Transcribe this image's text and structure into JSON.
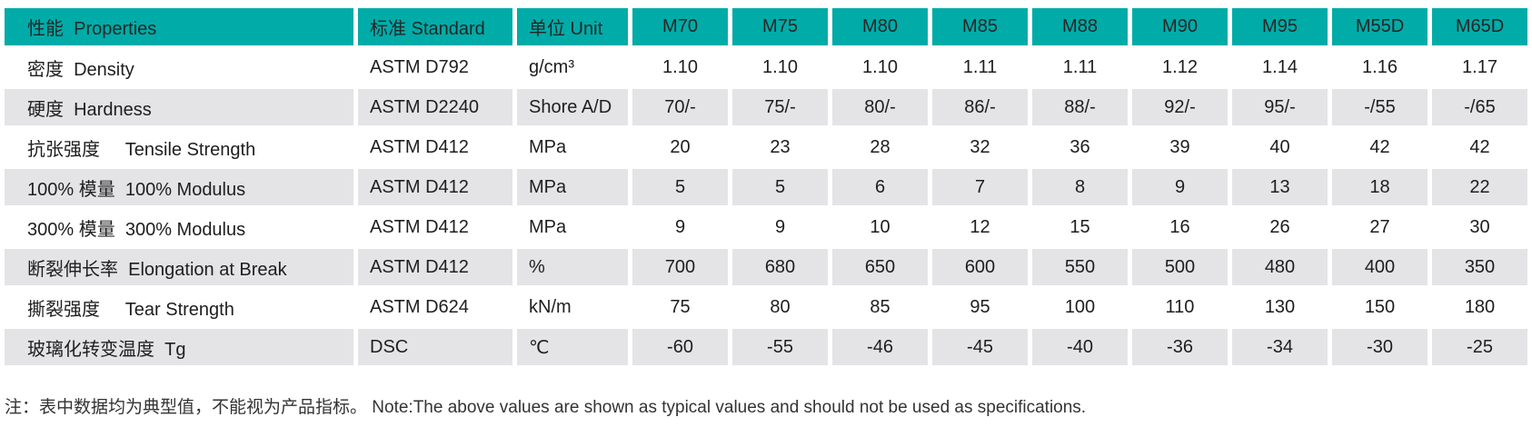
{
  "colors": {
    "header_bg": "#00aba8",
    "header_text": "#262626",
    "row_alt_bg": "#e4e4e6",
    "text": "#1e1e1e",
    "note_text": "#333333"
  },
  "table": {
    "header": {
      "property_label": "性能  Properties",
      "standard_label": "标准 Standard",
      "unit_label": "单位 Unit",
      "grades": [
        "M70",
        "M75",
        "M80",
        "M85",
        "M88",
        "M90",
        "M95",
        "M55D",
        "M65D"
      ]
    },
    "rows": [
      {
        "property": "密度  Density",
        "standard": "ASTM D792",
        "unit": "g/cm³",
        "values": [
          "1.10",
          "1.10",
          "1.10",
          "1.11",
          "1.11",
          "1.12",
          "1.14",
          "1.16",
          "1.17"
        ]
      },
      {
        "property": "硬度  Hardness",
        "standard": "ASTM D2240",
        "unit": "Shore A/D",
        "values": [
          "70/-",
          "75/-",
          "80/-",
          "86/-",
          "88/-",
          "92/-",
          "95/-",
          "-/55",
          "-/65"
        ]
      },
      {
        "property": "抗张强度     Tensile Strength",
        "standard": "ASTM D412",
        "unit": "MPa",
        "values": [
          "20",
          "23",
          "28",
          "32",
          "36",
          "39",
          "40",
          "42",
          "42"
        ]
      },
      {
        "property": "100% 模量  100% Modulus",
        "standard": "ASTM D412",
        "unit": "MPa",
        "values": [
          "5",
          "5",
          "6",
          "7",
          "8",
          "9",
          "13",
          "18",
          "22"
        ]
      },
      {
        "property": "300% 模量  300% Modulus",
        "standard": "ASTM D412",
        "unit": "MPa",
        "values": [
          "9",
          "9",
          "10",
          "12",
          "15",
          "16",
          "26",
          "27",
          "30"
        ]
      },
      {
        "property": "断裂伸长率  Elongation at Break",
        "standard": "ASTM D412",
        "unit": "%",
        "values": [
          "700",
          "680",
          "650",
          "600",
          "550",
          "500",
          "480",
          "400",
          "350"
        ]
      },
      {
        "property": "撕裂强度     Tear Strength",
        "standard": "ASTM D624",
        "unit": "kN/m",
        "values": [
          "75",
          "80",
          "85",
          "95",
          "100",
          "110",
          "130",
          "150",
          "180"
        ]
      },
      {
        "property": "玻璃化转变温度  Tg",
        "standard": "DSC",
        "unit": "℃",
        "values": [
          "-60",
          "-55",
          "-46",
          "-45",
          "-40",
          "-36",
          "-34",
          "-30",
          "-25"
        ]
      }
    ],
    "note": "注：表中数据均为典型值，不能视为产品指标。 Note:The above values are shown as typical values and should not be used as specifications."
  }
}
